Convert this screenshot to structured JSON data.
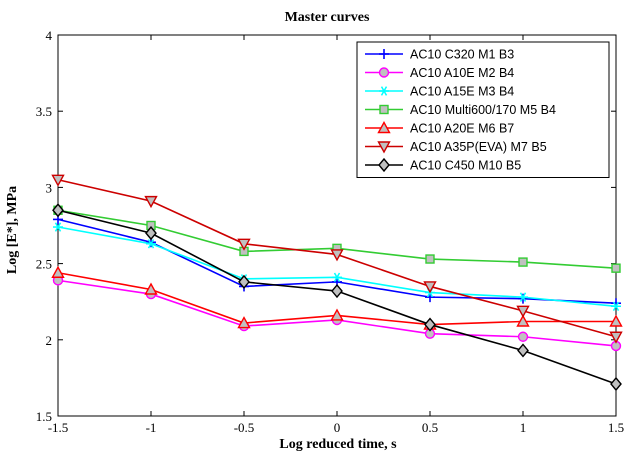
{
  "chart_data": {
    "type": "line",
    "title": "Master curves",
    "xlabel": "Log reduced time, s",
    "ylabel": "Log [E*], MPa",
    "xlim": [
      -1.5,
      1.5
    ],
    "ylim": [
      1.5,
      4
    ],
    "x_ticks": [
      "-1.5",
      "-1",
      "-0.5",
      "0",
      "0.5",
      "1",
      "1.5"
    ],
    "y_ticks": [
      "1.5",
      "2",
      "2.5",
      "3",
      "3.5",
      "4"
    ],
    "grid": false,
    "legend_position": "top-right",
    "x": [
      -1.5,
      -1,
      -0.5,
      0,
      0.5,
      1,
      1.5
    ],
    "series": [
      {
        "name": "AC10 C320 M1 B3",
        "color": "#0000ff",
        "marker": "plus",
        "values": [
          2.79,
          2.64,
          2.35,
          2.38,
          2.28,
          2.27,
          2.24
        ]
      },
      {
        "name": "AC10 A10E M2 B4",
        "color": "#ff00ff",
        "marker": "circle",
        "values": [
          2.39,
          2.3,
          2.09,
          2.13,
          2.04,
          2.02,
          1.96
        ]
      },
      {
        "name": "AC10 A15E M3 B4",
        "color": "#00ffff",
        "marker": "asterisk",
        "values": [
          2.74,
          2.63,
          2.4,
          2.41,
          2.31,
          2.28,
          2.22
        ]
      },
      {
        "name": "AC10 Multi600/170 M5 B4",
        "color": "#33cc33",
        "marker": "square",
        "values": [
          2.85,
          2.75,
          2.58,
          2.6,
          2.53,
          2.51,
          2.47
        ]
      },
      {
        "name": "AC10 A20E M6 B7",
        "color": "#ff0000",
        "marker": "triangle-up",
        "values": [
          2.44,
          2.33,
          2.11,
          2.16,
          2.1,
          2.12,
          2.12
        ]
      },
      {
        "name": "AC10 A35P(EVA) M7 B5",
        "color": "#cc0000",
        "marker": "triangle-down",
        "values": [
          3.05,
          2.91,
          2.63,
          2.56,
          2.35,
          2.19,
          2.02
        ]
      },
      {
        "name": "AC10 C450 M10 B5",
        "color": "#000000",
        "marker": "diamond",
        "values": [
          2.85,
          2.7,
          2.38,
          2.32,
          2.1,
          1.93,
          1.71
        ]
      }
    ]
  }
}
